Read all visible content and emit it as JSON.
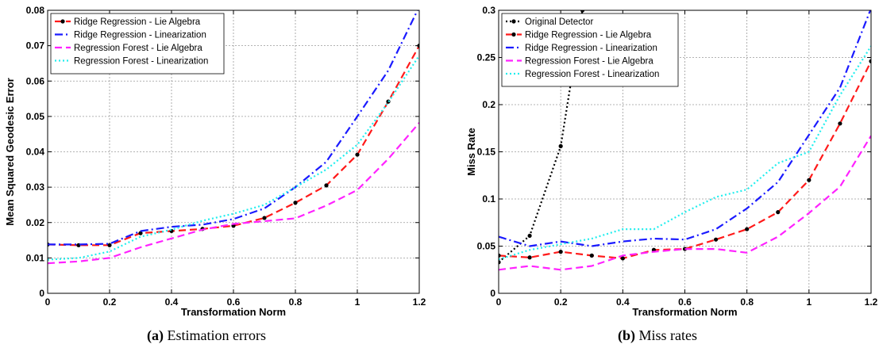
{
  "chart_data": [
    {
      "type": "line",
      "title": "",
      "xlabel": "Transformation Norm",
      "ylabel": "Mean Squared Geodesic Error",
      "xlim": [
        0,
        1.2
      ],
      "ylim": [
        0,
        0.08
      ],
      "xticks": [
        0,
        0.2,
        0.4,
        0.6,
        0.8,
        1,
        1.2
      ],
      "xtick_labels": [
        "0",
        "0.2",
        "0.4",
        "0.6",
        "0.8",
        "1",
        "1.2"
      ],
      "yticks": [
        0,
        0.01,
        0.02,
        0.03,
        0.04,
        0.05,
        0.06,
        0.07,
        0.08
      ],
      "ytick_labels": [
        "0",
        "0.01",
        "0.02",
        "0.03",
        "0.04",
        "0.05",
        "0.06",
        "0.07",
        "0.08"
      ],
      "grid": true,
      "legend_position": "top-left",
      "x": [
        0,
        0.1,
        0.2,
        0.3,
        0.4,
        0.5,
        0.6,
        0.7,
        0.8,
        0.9,
        1.0,
        1.1,
        1.2
      ],
      "series": [
        {
          "name": "Ridge Regression - Lie Algebra",
          "color": "#ff1a1a",
          "style": "dashed",
          "marker": "dot",
          "values": [
            0.0138,
            0.0136,
            0.0136,
            0.017,
            0.0176,
            0.0182,
            0.0191,
            0.0213,
            0.0256,
            0.0305,
            0.0392,
            0.0542,
            0.07
          ]
        },
        {
          "name": "Ridge Regression - Linearization",
          "color": "#1a1aff",
          "style": "dashdot",
          "marker": "none",
          "values": [
            0.0138,
            0.0138,
            0.014,
            0.0176,
            0.0188,
            0.0194,
            0.021,
            0.024,
            0.03,
            0.0372,
            0.05,
            0.063,
            0.081
          ]
        },
        {
          "name": "Regression Forest - Lie Algebra",
          "color": "#ff22ff",
          "style": "dashed",
          "marker": "none",
          "values": [
            0.0085,
            0.009,
            0.01,
            0.013,
            0.0155,
            0.018,
            0.0196,
            0.0204,
            0.0212,
            0.0248,
            0.0292,
            0.038,
            0.0482
          ]
        },
        {
          "name": "Regression Forest - Linearization",
          "color": "#22eeee",
          "style": "dotted",
          "marker": "none",
          "values": [
            0.0095,
            0.01,
            0.0118,
            0.016,
            0.018,
            0.0205,
            0.0225,
            0.025,
            0.03,
            0.035,
            0.042,
            0.054,
            0.0672
          ]
        }
      ]
    },
    {
      "type": "line",
      "title": "",
      "xlabel": "Transformation Norm",
      "ylabel": "Miss Rate",
      "xlim": [
        0,
        1.2
      ],
      "ylim": [
        0,
        0.3
      ],
      "xticks": [
        0,
        0.2,
        0.4,
        0.6,
        0.8,
        1,
        1.2
      ],
      "xtick_labels": [
        "0",
        "0.2",
        "0.4",
        "0.6",
        "0.8",
        "1",
        "1.2"
      ],
      "yticks": [
        0,
        0.05,
        0.1,
        0.15,
        0.2,
        0.25,
        0.3
      ],
      "ytick_labels": [
        "0",
        "0.05",
        "0.1",
        "0.15",
        "0.2",
        "0.25",
        "0.3"
      ],
      "grid": true,
      "legend_position": "top-left",
      "series": [
        {
          "name": "Original Detector",
          "color": "#000000",
          "style": "dotted",
          "marker": "dot",
          "x": [
            0,
            0.1,
            0.2,
            0.27
          ],
          "values": [
            0.033,
            0.061,
            0.156,
            0.3
          ]
        },
        {
          "name": "Ridge Regression - Lie Algebra",
          "color": "#ff1a1a",
          "style": "dashed",
          "marker": "dot",
          "x": [
            0,
            0.1,
            0.2,
            0.3,
            0.4,
            0.5,
            0.6,
            0.7,
            0.8,
            0.9,
            1.0,
            1.1,
            1.2
          ],
          "values": [
            0.04,
            0.038,
            0.044,
            0.04,
            0.037,
            0.046,
            0.047,
            0.057,
            0.068,
            0.086,
            0.12,
            0.18,
            0.246
          ]
        },
        {
          "name": "Ridge Regression - Linearization",
          "color": "#1a1aff",
          "style": "dashdot",
          "marker": "none",
          "x": [
            0,
            0.1,
            0.2,
            0.3,
            0.4,
            0.5,
            0.6,
            0.7,
            0.8,
            0.9,
            1.0,
            1.1,
            1.2
          ],
          "values": [
            0.06,
            0.05,
            0.055,
            0.05,
            0.055,
            0.058,
            0.057,
            0.068,
            0.09,
            0.118,
            0.168,
            0.218,
            0.302
          ]
        },
        {
          "name": "Regression Forest - Lie Algebra",
          "color": "#ff22ff",
          "style": "dashed",
          "marker": "none",
          "x": [
            0,
            0.1,
            0.2,
            0.3,
            0.4,
            0.5,
            0.6,
            0.7,
            0.8,
            0.9,
            1.0,
            1.1,
            1.2
          ],
          "values": [
            0.025,
            0.029,
            0.025,
            0.029,
            0.04,
            0.044,
            0.047,
            0.047,
            0.043,
            0.06,
            0.085,
            0.113,
            0.167
          ]
        },
        {
          "name": "Regression Forest - Linearization",
          "color": "#22eeee",
          "style": "dotted",
          "marker": "none",
          "x": [
            0,
            0.1,
            0.2,
            0.3,
            0.4,
            0.5,
            0.6,
            0.7,
            0.8,
            0.9,
            1.0,
            1.1,
            1.2
          ],
          "values": [
            0.036,
            0.046,
            0.052,
            0.058,
            0.068,
            0.068,
            0.086,
            0.102,
            0.11,
            0.138,
            0.15,
            0.21,
            0.262
          ]
        }
      ]
    }
  ],
  "captions": [
    {
      "label": "(a)",
      "text": "Estimation errors"
    },
    {
      "label": "(b)",
      "text": "Miss rates"
    }
  ]
}
